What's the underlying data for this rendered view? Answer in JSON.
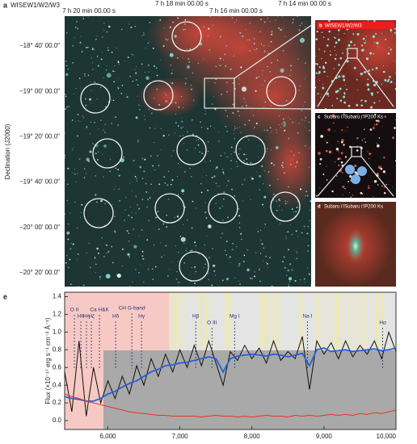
{
  "panel_a": {
    "label": "a",
    "title": "WISEW1/W2/W3",
    "ra_ticks": [
      "7 h 20 min 00.00 s",
      "7 h 18 min 00.00 s",
      "7 h 16 min 00.00 s",
      "7 h 14 min 00.00 s"
    ],
    "dec_ticks": [
      "−18° 40′ 00.0″",
      "−19° 00′ 00.0″",
      "−19° 20′ 00.0″",
      "−19° 40′ 00.0″",
      "−20° 00′ 00.0″",
      "−20° 20′ 00.0″"
    ],
    "y_axis_label": "Declination (J2000)"
  },
  "panel_b": {
    "label": "b",
    "title": "WISEW1/W2/W3"
  },
  "panel_c": {
    "label": "c",
    "title": "Subaru i′/Subaru i′/P200 Ks"
  },
  "panel_d": {
    "label": "d",
    "title": "Subaru i′/Subaru i′/P200 Ks"
  },
  "chart_data": {
    "type": "line",
    "label": "e",
    "y_axis_label": "Flux (×10⁻¹⁷ erg s⁻¹ cm⁻² Å⁻¹)",
    "x": [
      5400,
      5500,
      5600,
      5700,
      5800,
      5900,
      6000,
      6100,
      6200,
      6300,
      6400,
      6500,
      6600,
      6700,
      6800,
      6900,
      7000,
      7100,
      7200,
      7300,
      7400,
      7500,
      7600,
      7700,
      7800,
      7900,
      8000,
      8100,
      8200,
      8300,
      8400,
      8500,
      8600,
      8700,
      8800,
      8900,
      9000,
      9100,
      9200,
      9300,
      9400,
      9500,
      9600,
      9700,
      9800,
      9900,
      10000
    ],
    "series": [
      {
        "color": "#111111",
        "values": [
          0.55,
          0.1,
          0.9,
          0.05,
          0.6,
          0.2,
          0.45,
          0.25,
          0.5,
          0.3,
          0.62,
          0.4,
          0.7,
          0.5,
          0.75,
          0.55,
          0.8,
          0.6,
          0.85,
          0.62,
          0.9,
          0.65,
          0.4,
          0.78,
          0.68,
          0.85,
          0.7,
          0.82,
          0.65,
          0.9,
          0.68,
          0.78,
          0.7,
          0.95,
          0.35,
          0.9,
          0.75,
          0.88,
          0.7,
          0.9,
          0.72,
          0.85,
          0.75,
          0.9,
          0.7,
          1.0,
          0.78
        ]
      },
      {
        "color": "#2a5fd8",
        "values": [
          0.27,
          0.25,
          0.24,
          0.22,
          0.22,
          0.25,
          0.3,
          0.33,
          0.38,
          0.42,
          0.45,
          0.5,
          0.55,
          0.58,
          0.62,
          0.63,
          0.65,
          0.66,
          0.68,
          0.7,
          0.72,
          0.7,
          0.55,
          0.7,
          0.73,
          0.74,
          0.75,
          0.74,
          0.73,
          0.75,
          0.74,
          0.72,
          0.74,
          0.76,
          0.62,
          0.8,
          0.82,
          0.78,
          0.79,
          0.8,
          0.78,
          0.79,
          0.8,
          0.81,
          0.79,
          0.8,
          0.82
        ]
      },
      {
        "color": "#e8321e",
        "values": [
          0.3,
          0.27,
          0.25,
          0.22,
          0.2,
          0.18,
          0.16,
          0.14,
          0.12,
          0.1,
          0.09,
          0.08,
          0.07,
          0.06,
          0.06,
          0.05,
          0.05,
          0.05,
          0.05,
          0.04,
          0.05,
          0.06,
          0.05,
          0.05,
          0.04,
          0.05,
          0.04,
          0.05,
          0.06,
          0.05,
          0.05,
          0.04,
          0.06,
          0.05,
          0.06,
          0.05,
          0.06,
          0.07,
          0.06,
          0.07,
          0.06,
          0.08,
          0.07,
          0.09,
          0.08,
          0.1,
          0.12
        ]
      }
    ],
    "lines": [
      {
        "label": "O II",
        "wavelength": 5535
      },
      {
        "label": "Hθ",
        "wavelength": 5625
      },
      {
        "label": "Hη",
        "wavelength": 5703
      },
      {
        "label": "Hζ",
        "wavelength": 5771
      },
      {
        "label": "Ca H&K",
        "wavelength": 5883
      },
      {
        "label": "Hδ",
        "wavelength": 6108
      },
      {
        "label": "CH G-band",
        "wavelength": 6333
      },
      {
        "label": "Hγ",
        "wavelength": 6467
      },
      {
        "label": "Hβ",
        "wavelength": 7220
      },
      {
        "label": "O III",
        "wavelength": 7445
      },
      {
        "label": "Mg I",
        "wavelength": 7760
      },
      {
        "label": "Na I",
        "wavelength": 8771
      },
      {
        "label": "Hα",
        "wavelength": 9816
      }
    ],
    "xlim": [
      5400,
      10000
    ],
    "ylim": [
      -0.1,
      1.45
    ],
    "xticks": [
      {
        "value": 6000,
        "label": "6,000"
      },
      {
        "value": 7000,
        "label": "7,000"
      },
      {
        "value": 8000,
        "label": "8,000"
      },
      {
        "value": 9000,
        "label": "9,000"
      },
      {
        "value": 10000,
        "label": "10,000"
      }
    ],
    "yticks": [
      {
        "value": 0,
        "label": "0.0"
      },
      {
        "value": 0.2,
        "label": "0.2"
      },
      {
        "value": 0.4,
        "label": "0.4"
      },
      {
        "value": 0.6,
        "label": "0.6"
      },
      {
        "value": 0.8,
        "label": "0.8"
      },
      {
        "value": 1,
        "label": "1.0"
      },
      {
        "value": 1.2,
        "label": "1.2"
      },
      {
        "value": 1.4,
        "label": "1.4"
      }
    ]
  }
}
